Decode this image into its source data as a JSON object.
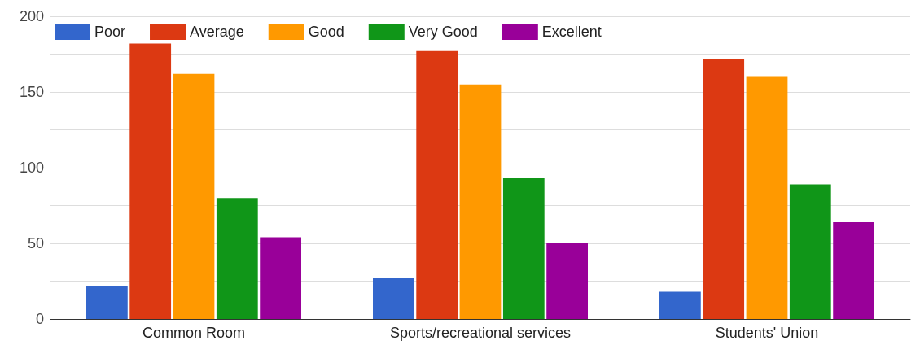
{
  "chart_data": {
    "type": "bar",
    "categories": [
      "Common Room",
      "Sports/recreational services",
      "Students' Union"
    ],
    "series": [
      {
        "name": "Poor",
        "color": "#3366cc",
        "values": [
          22,
          27,
          18
        ]
      },
      {
        "name": "Average",
        "color": "#dc3912",
        "values": [
          182,
          177,
          172
        ]
      },
      {
        "name": "Good",
        "color": "#ff9900",
        "values": [
          162,
          155,
          160
        ]
      },
      {
        "name": "Very Good",
        "color": "#109618",
        "values": [
          80,
          93,
          89
        ]
      },
      {
        "name": "Excellent",
        "color": "#990099",
        "values": [
          54,
          50,
          64
        ]
      }
    ],
    "ylim": [
      0,
      200
    ],
    "yticks": [
      0,
      {
        "value": 25,
        "label": null
      },
      50,
      {
        "value": 75,
        "label": null
      },
      100,
      {
        "value": 125,
        "label": null
      },
      150,
      {
        "value": 175,
        "label": null
      },
      200
    ],
    "grid": "y",
    "legend": "top left"
  }
}
